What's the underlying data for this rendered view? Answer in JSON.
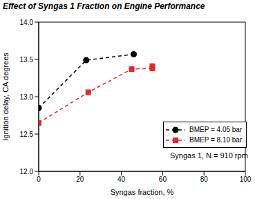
{
  "chart_data": {
    "type": "line",
    "title": "Effect of Syngas 1 Fraction on Engine Performance",
    "x_label": "Syngas fraction, %",
    "y_label": "Ignition delay, CA degrees",
    "annotation": "Syngas 1, N = 910 rpm",
    "xlim": [
      0,
      100
    ],
    "xticks": [
      0,
      20,
      40,
      60,
      80,
      100
    ],
    "ylim": [
      12,
      14
    ],
    "yticks": [
      {
        "value": 12,
        "label": "12.0"
      },
      {
        "value": 12.5,
        "label": "12.5"
      },
      {
        "value": 13,
        "label": "13.0"
      },
      {
        "value": 13.5,
        "label": "13.5"
      },
      {
        "value": 14,
        "label": "14.0"
      }
    ],
    "grid": false,
    "legend": "lower right",
    "series": [
      {
        "name": "BMEP = 4.05 bar",
        "color": "#000000",
        "marker": "circle",
        "line_style": "dashed",
        "x": [
          0,
          23,
          46
        ],
        "values": [
          12.85,
          13.49,
          13.57
        ]
      },
      {
        "name": "BMEP = 8.10 bar",
        "color": "#e8262a",
        "marker": "square",
        "line_style": "dashed",
        "x": [
          0,
          24,
          45,
          55,
          55
        ],
        "values": [
          12.65,
          13.06,
          13.37,
          13.38,
          13.41
        ]
      }
    ]
  }
}
